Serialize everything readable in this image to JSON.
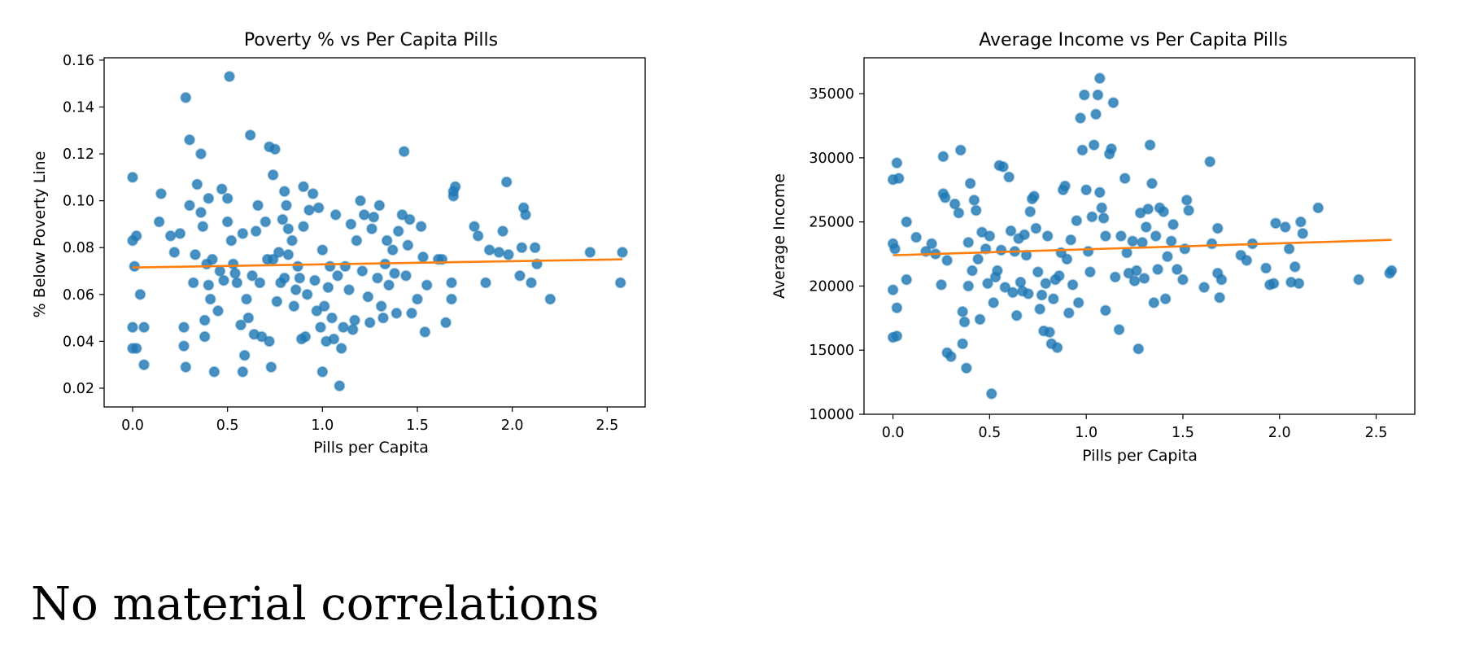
{
  "caption": "No material correlations",
  "colors": {
    "points": "#1f77b4",
    "trend": "#ff7f0e"
  },
  "chart_data": [
    {
      "type": "scatter",
      "title": "Poverty % vs Per Capita Pills",
      "xlabel": "Pills per Capita",
      "ylabel": "% Below Poverty Line",
      "xlim": [
        -0.15,
        2.7
      ],
      "ylim": [
        0.012,
        0.161
      ],
      "xticks": [
        0.0,
        0.5,
        1.0,
        1.5,
        2.0,
        2.5
      ],
      "xtick_labels": [
        "0.0",
        "0.5",
        "1.0",
        "1.5",
        "2.0",
        "2.5"
      ],
      "yticks": [
        0.02,
        0.04,
        0.06,
        0.08,
        0.1,
        0.12,
        0.14,
        0.16
      ],
      "ytick_labels": [
        "0.02",
        "0.04",
        "0.06",
        "0.08",
        "0.10",
        "0.12",
        "0.14",
        "0.16"
      ],
      "grid": false,
      "trend_line": {
        "x": [
          0.0,
          2.58
        ],
        "y": [
          0.0715,
          0.075
        ]
      },
      "points": [
        [
          0.0,
          0.11
        ],
        [
          0.0,
          0.083
        ],
        [
          0.02,
          0.085
        ],
        [
          0.0,
          0.046
        ],
        [
          0.0,
          0.037
        ],
        [
          0.02,
          0.037
        ],
        [
          0.04,
          0.06
        ],
        [
          0.06,
          0.046
        ],
        [
          0.06,
          0.03
        ],
        [
          0.01,
          0.072
        ],
        [
          0.15,
          0.103
        ],
        [
          0.14,
          0.091
        ],
        [
          0.2,
          0.085
        ],
        [
          0.22,
          0.078
        ],
        [
          0.25,
          0.086
        ],
        [
          0.27,
          0.046
        ],
        [
          0.27,
          0.038
        ],
        [
          0.28,
          0.029
        ],
        [
          0.28,
          0.144
        ],
        [
          0.3,
          0.126
        ],
        [
          0.3,
          0.098
        ],
        [
          0.32,
          0.065
        ],
        [
          0.33,
          0.077
        ],
        [
          0.34,
          0.107
        ],
        [
          0.36,
          0.12
        ],
        [
          0.36,
          0.095
        ],
        [
          0.37,
          0.089
        ],
        [
          0.38,
          0.049
        ],
        [
          0.38,
          0.042
        ],
        [
          0.39,
          0.073
        ],
        [
          0.4,
          0.101
        ],
        [
          0.4,
          0.064
        ],
        [
          0.41,
          0.058
        ],
        [
          0.42,
          0.075
        ],
        [
          0.43,
          0.027
        ],
        [
          0.45,
          0.053
        ],
        [
          0.46,
          0.07
        ],
        [
          0.47,
          0.105
        ],
        [
          0.48,
          0.066
        ],
        [
          0.5,
          0.091
        ],
        [
          0.5,
          0.101
        ],
        [
          0.51,
          0.153
        ],
        [
          0.52,
          0.083
        ],
        [
          0.53,
          0.073
        ],
        [
          0.54,
          0.069
        ],
        [
          0.55,
          0.065
        ],
        [
          0.57,
          0.047
        ],
        [
          0.58,
          0.086
        ],
        [
          0.58,
          0.027
        ],
        [
          0.59,
          0.034
        ],
        [
          0.6,
          0.058
        ],
        [
          0.61,
          0.05
        ],
        [
          0.62,
          0.128
        ],
        [
          0.63,
          0.068
        ],
        [
          0.64,
          0.043
        ],
        [
          0.65,
          0.087
        ],
        [
          0.66,
          0.098
        ],
        [
          0.67,
          0.065
        ],
        [
          0.68,
          0.042
        ],
        [
          0.7,
          0.091
        ],
        [
          0.71,
          0.075
        ],
        [
          0.72,
          0.123
        ],
        [
          0.72,
          0.04
        ],
        [
          0.73,
          0.029
        ],
        [
          0.74,
          0.111
        ],
        [
          0.74,
          0.075
        ],
        [
          0.75,
          0.122
        ],
        [
          0.76,
          0.057
        ],
        [
          0.77,
          0.078
        ],
        [
          0.78,
          0.065
        ],
        [
          0.79,
          0.092
        ],
        [
          0.8,
          0.104
        ],
        [
          0.8,
          0.067
        ],
        [
          0.81,
          0.098
        ],
        [
          0.82,
          0.088
        ],
        [
          0.82,
          0.077
        ],
        [
          0.84,
          0.083
        ],
        [
          0.85,
          0.055
        ],
        [
          0.86,
          0.062
        ],
        [
          0.87,
          0.072
        ],
        [
          0.88,
          0.067
        ],
        [
          0.89,
          0.041
        ],
        [
          0.9,
          0.106
        ],
        [
          0.9,
          0.089
        ],
        [
          0.91,
          0.042
        ],
        [
          0.92,
          0.06
        ],
        [
          0.93,
          0.096
        ],
        [
          0.95,
          0.103
        ],
        [
          0.96,
          0.066
        ],
        [
          0.97,
          0.053
        ],
        [
          0.98,
          0.097
        ],
        [
          0.99,
          0.046
        ],
        [
          1.0,
          0.079
        ],
        [
          1.0,
          0.027
        ],
        [
          1.01,
          0.055
        ],
        [
          1.02,
          0.04
        ],
        [
          1.03,
          0.063
        ],
        [
          1.04,
          0.072
        ],
        [
          1.05,
          0.05
        ],
        [
          1.06,
          0.041
        ],
        [
          1.07,
          0.094
        ],
        [
          1.08,
          0.068
        ],
        [
          1.09,
          0.021
        ],
        [
          1.1,
          0.037
        ],
        [
          1.11,
          0.046
        ],
        [
          1.12,
          0.072
        ],
        [
          1.14,
          0.062
        ],
        [
          1.15,
          0.09
        ],
        [
          1.16,
          0.045
        ],
        [
          1.17,
          0.049
        ],
        [
          1.18,
          0.083
        ],
        [
          1.2,
          0.1
        ],
        [
          1.21,
          0.07
        ],
        [
          1.22,
          0.094
        ],
        [
          1.24,
          0.059
        ],
        [
          1.25,
          0.048
        ],
        [
          1.26,
          0.088
        ],
        [
          1.27,
          0.093
        ],
        [
          1.29,
          0.067
        ],
        [
          1.3,
          0.098
        ],
        [
          1.31,
          0.055
        ],
        [
          1.32,
          0.05
        ],
        [
          1.33,
          0.073
        ],
        [
          1.34,
          0.083
        ],
        [
          1.35,
          0.064
        ],
        [
          1.37,
          0.079
        ],
        [
          1.38,
          0.069
        ],
        [
          1.39,
          0.052
        ],
        [
          1.4,
          0.087
        ],
        [
          1.42,
          0.094
        ],
        [
          1.43,
          0.121
        ],
        [
          1.44,
          0.068
        ],
        [
          1.45,
          0.081
        ],
        [
          1.46,
          0.092
        ],
        [
          1.47,
          0.052
        ],
        [
          1.5,
          0.058
        ],
        [
          1.52,
          0.089
        ],
        [
          1.53,
          0.076
        ],
        [
          1.54,
          0.044
        ],
        [
          1.55,
          0.064
        ],
        [
          1.61,
          0.075
        ],
        [
          1.63,
          0.075
        ],
        [
          1.65,
          0.048
        ],
        [
          1.68,
          0.058
        ],
        [
          1.68,
          0.065
        ],
        [
          1.69,
          0.104
        ],
        [
          1.69,
          0.102
        ],
        [
          1.7,
          0.106
        ],
        [
          1.8,
          0.089
        ],
        [
          1.82,
          0.085
        ],
        [
          1.86,
          0.065
        ],
        [
          1.88,
          0.079
        ],
        [
          1.93,
          0.078
        ],
        [
          1.95,
          0.087
        ],
        [
          1.97,
          0.108
        ],
        [
          1.98,
          0.077
        ],
        [
          2.04,
          0.068
        ],
        [
          2.05,
          0.08
        ],
        [
          2.06,
          0.097
        ],
        [
          2.07,
          0.094
        ],
        [
          2.1,
          0.065
        ],
        [
          2.12,
          0.08
        ],
        [
          2.13,
          0.073
        ],
        [
          2.2,
          0.058
        ],
        [
          2.41,
          0.078
        ],
        [
          2.57,
          0.065
        ],
        [
          2.58,
          0.078
        ]
      ]
    },
    {
      "type": "scatter",
      "title": "Average Income vs Per Capita Pills",
      "xlabel": "Pills per Capita",
      "ylabel": "Average Income",
      "xlim": [
        -0.15,
        2.7
      ],
      "ylim": [
        10000,
        37800
      ],
      "xticks": [
        0.0,
        0.5,
        1.0,
        1.5,
        2.0,
        2.5
      ],
      "xtick_labels": [
        "0.0",
        "0.5",
        "1.0",
        "1.5",
        "2.0",
        "2.5"
      ],
      "yticks": [
        10000,
        15000,
        20000,
        25000,
        30000,
        35000
      ],
      "ytick_labels": [
        "10000",
        "15000",
        "20000",
        "25000",
        "30000",
        "35000"
      ],
      "grid": false,
      "trend_line": {
        "x": [
          0.0,
          2.58
        ],
        "y": [
          22400,
          23600
        ]
      },
      "points": [
        [
          0.0,
          28300
        ],
        [
          0.02,
          29600
        ],
        [
          0.03,
          28400
        ],
        [
          0.0,
          23300
        ],
        [
          0.01,
          22900
        ],
        [
          0.0,
          19700
        ],
        [
          0.02,
          18300
        ],
        [
          0.0,
          16000
        ],
        [
          0.02,
          16100
        ],
        [
          0.07,
          25000
        ],
        [
          0.07,
          20500
        ],
        [
          0.12,
          23800
        ],
        [
          0.17,
          22700
        ],
        [
          0.2,
          23300
        ],
        [
          0.22,
          22500
        ],
        [
          0.25,
          20100
        ],
        [
          0.26,
          30100
        ],
        [
          0.26,
          27200
        ],
        [
          0.27,
          26900
        ],
        [
          0.28,
          22000
        ],
        [
          0.28,
          14800
        ],
        [
          0.3,
          14500
        ],
        [
          0.32,
          26400
        ],
        [
          0.34,
          25700
        ],
        [
          0.35,
          30600
        ],
        [
          0.36,
          15500
        ],
        [
          0.36,
          18000
        ],
        [
          0.37,
          17200
        ],
        [
          0.38,
          13600
        ],
        [
          0.39,
          23400
        ],
        [
          0.39,
          20000
        ],
        [
          0.4,
          28000
        ],
        [
          0.41,
          21200
        ],
        [
          0.42,
          26700
        ],
        [
          0.43,
          25900
        ],
        [
          0.44,
          22100
        ],
        [
          0.45,
          17400
        ],
        [
          0.46,
          24200
        ],
        [
          0.48,
          22900
        ],
        [
          0.49,
          20200
        ],
        [
          0.5,
          23900
        ],
        [
          0.51,
          11600
        ],
        [
          0.52,
          18700
        ],
        [
          0.53,
          20700
        ],
        [
          0.54,
          21200
        ],
        [
          0.55,
          29400
        ],
        [
          0.56,
          22800
        ],
        [
          0.57,
          29300
        ],
        [
          0.58,
          19900
        ],
        [
          0.6,
          28500
        ],
        [
          0.61,
          24300
        ],
        [
          0.62,
          19500
        ],
        [
          0.63,
          22700
        ],
        [
          0.64,
          17700
        ],
        [
          0.65,
          23700
        ],
        [
          0.66,
          20300
        ],
        [
          0.67,
          19600
        ],
        [
          0.68,
          24000
        ],
        [
          0.69,
          22400
        ],
        [
          0.7,
          19400
        ],
        [
          0.71,
          25800
        ],
        [
          0.72,
          26800
        ],
        [
          0.73,
          27000
        ],
        [
          0.74,
          24500
        ],
        [
          0.75,
          21100
        ],
        [
          0.76,
          18200
        ],
        [
          0.77,
          19300
        ],
        [
          0.78,
          16500
        ],
        [
          0.79,
          20200
        ],
        [
          0.8,
          23900
        ],
        [
          0.81,
          16400
        ],
        [
          0.82,
          15500
        ],
        [
          0.83,
          19000
        ],
        [
          0.84,
          20500
        ],
        [
          0.85,
          15200
        ],
        [
          0.86,
          20800
        ],
        [
          0.87,
          22600
        ],
        [
          0.88,
          27500
        ],
        [
          0.89,
          27800
        ],
        [
          0.9,
          22100
        ],
        [
          0.91,
          17900
        ],
        [
          0.92,
          23600
        ],
        [
          0.93,
          20100
        ],
        [
          0.95,
          25100
        ],
        [
          0.96,
          18700
        ],
        [
          0.97,
          33100
        ],
        [
          0.98,
          30600
        ],
        [
          0.99,
          34900
        ],
        [
          1.0,
          27500
        ],
        [
          1.01,
          22700
        ],
        [
          1.02,
          21100
        ],
        [
          1.03,
          25400
        ],
        [
          1.04,
          31000
        ],
        [
          1.05,
          33400
        ],
        [
          1.06,
          34900
        ],
        [
          1.07,
          36200
        ],
        [
          1.07,
          27300
        ],
        [
          1.08,
          26100
        ],
        [
          1.09,
          25300
        ],
        [
          1.1,
          23900
        ],
        [
          1.1,
          18100
        ],
        [
          1.12,
          30300
        ],
        [
          1.13,
          30700
        ],
        [
          1.14,
          34300
        ],
        [
          1.15,
          20700
        ],
        [
          1.17,
          16600
        ],
        [
          1.18,
          23900
        ],
        [
          1.2,
          28400
        ],
        [
          1.21,
          22600
        ],
        [
          1.22,
          21000
        ],
        [
          1.24,
          23500
        ],
        [
          1.25,
          20400
        ],
        [
          1.26,
          21200
        ],
        [
          1.27,
          15100
        ],
        [
          1.28,
          25700
        ],
        [
          1.29,
          23400
        ],
        [
          1.3,
          20600
        ],
        [
          1.31,
          24600
        ],
        [
          1.32,
          26000
        ],
        [
          1.33,
          31000
        ],
        [
          1.34,
          28000
        ],
        [
          1.35,
          18700
        ],
        [
          1.36,
          23900
        ],
        [
          1.37,
          21300
        ],
        [
          1.38,
          26100
        ],
        [
          1.4,
          25800
        ],
        [
          1.41,
          19000
        ],
        [
          1.42,
          22300
        ],
        [
          1.44,
          23500
        ],
        [
          1.45,
          24800
        ],
        [
          1.47,
          21300
        ],
        [
          1.5,
          20500
        ],
        [
          1.51,
          22900
        ],
        [
          1.52,
          26700
        ],
        [
          1.53,
          25900
        ],
        [
          1.61,
          19900
        ],
        [
          1.64,
          29700
        ],
        [
          1.65,
          23300
        ],
        [
          1.68,
          24500
        ],
        [
          1.68,
          21000
        ],
        [
          1.69,
          19100
        ],
        [
          1.7,
          20500
        ],
        [
          1.8,
          22400
        ],
        [
          1.83,
          22000
        ],
        [
          1.86,
          23300
        ],
        [
          1.93,
          21400
        ],
        [
          1.95,
          20100
        ],
        [
          1.97,
          20200
        ],
        [
          1.98,
          24900
        ],
        [
          2.03,
          24600
        ],
        [
          2.05,
          22900
        ],
        [
          2.06,
          20300
        ],
        [
          2.08,
          21500
        ],
        [
          2.1,
          20200
        ],
        [
          2.11,
          25000
        ],
        [
          2.12,
          24100
        ],
        [
          2.2,
          26100
        ],
        [
          2.41,
          20500
        ],
        [
          2.57,
          21000
        ],
        [
          2.58,
          21200
        ]
      ]
    }
  ]
}
